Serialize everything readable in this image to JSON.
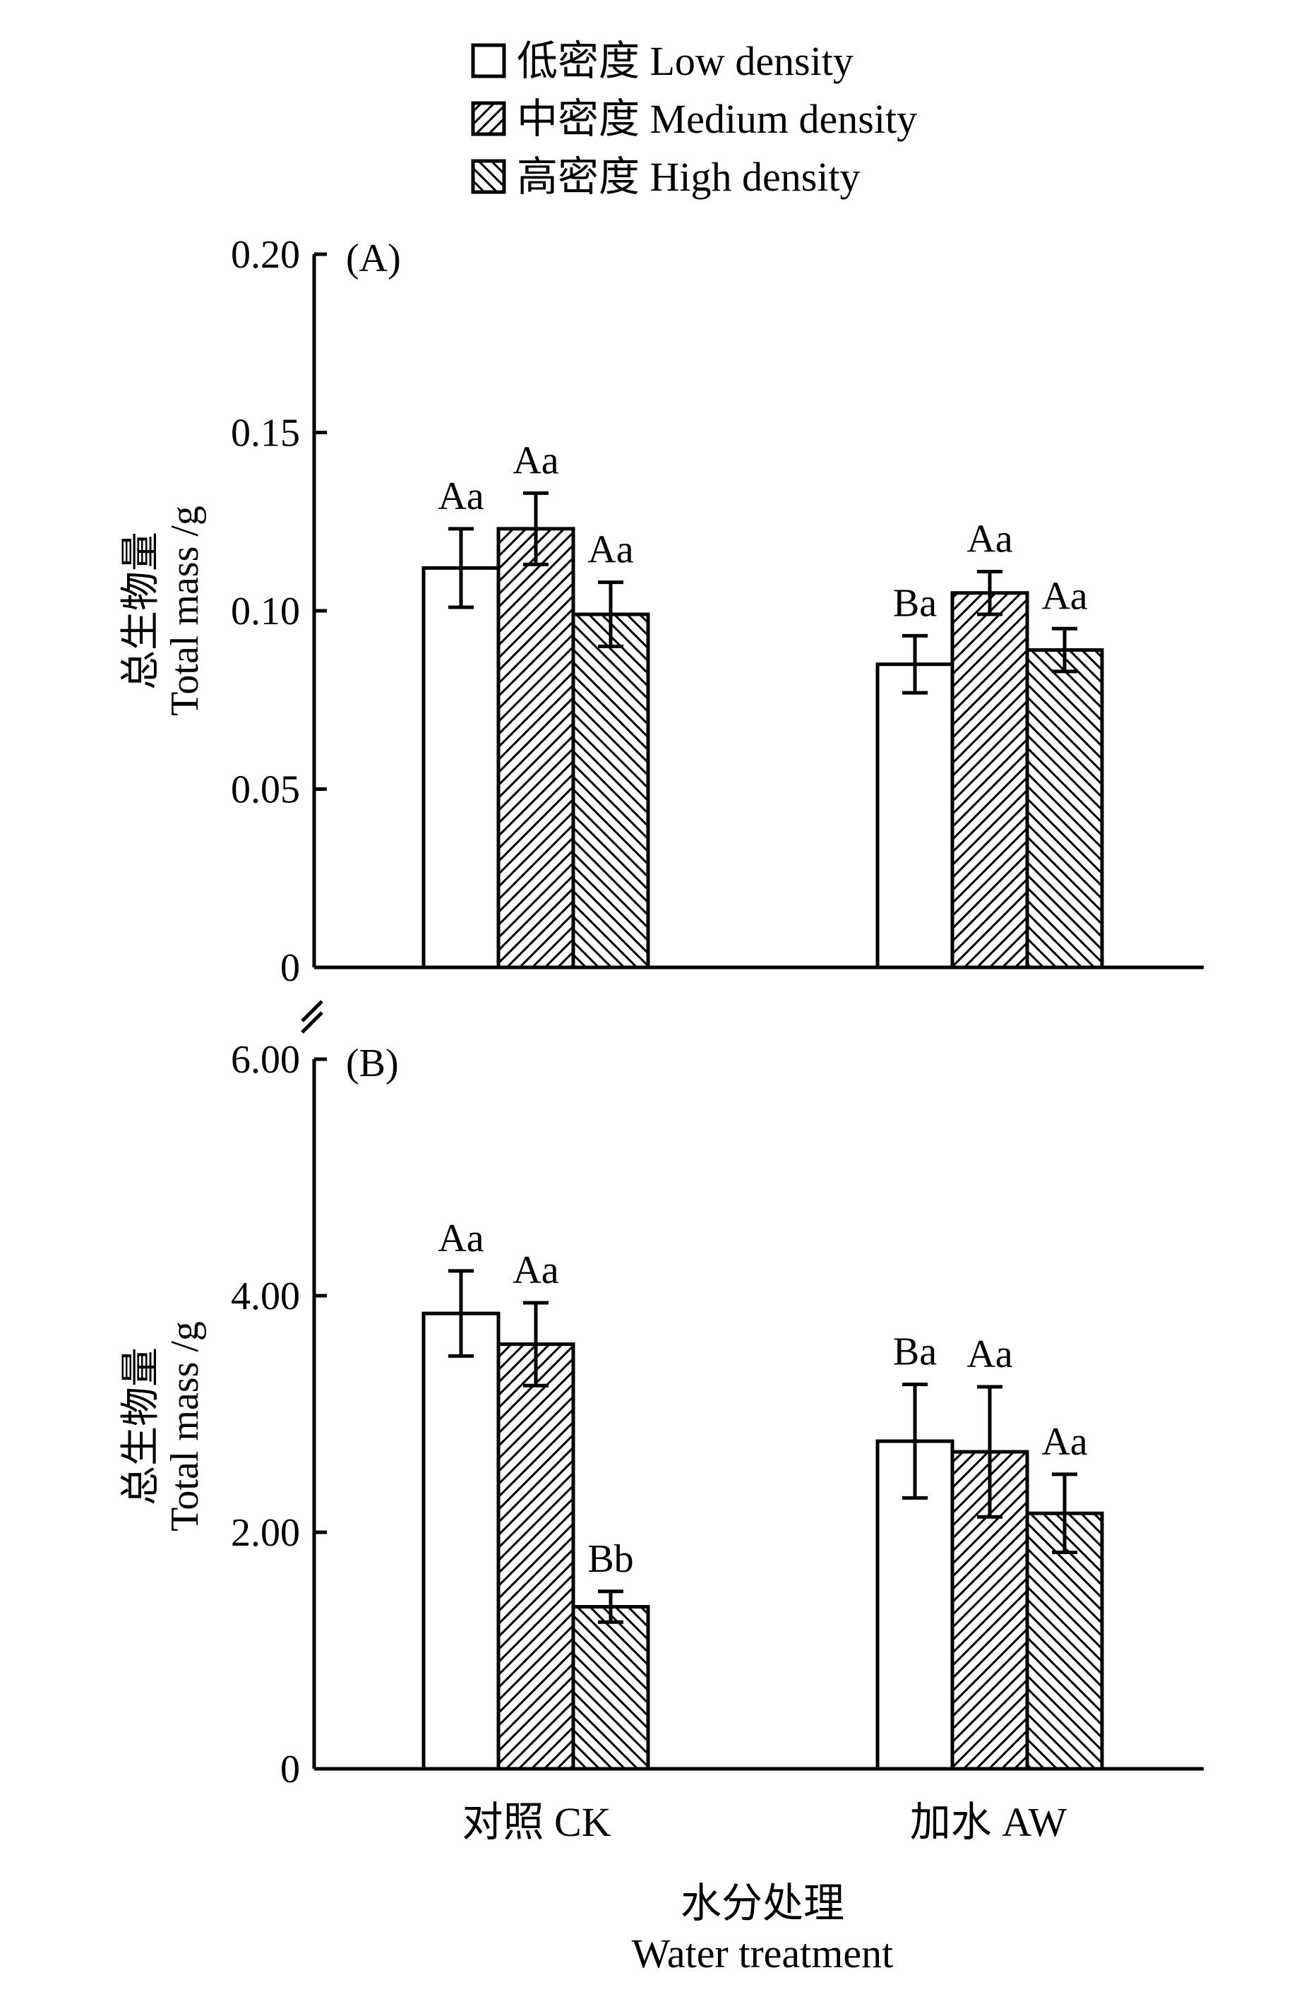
{
  "legend": [
    {
      "key": "low",
      "label": "低密度 Low density",
      "pattern": "none"
    },
    {
      "key": "medium",
      "label": "中密度 Medium density",
      "pattern": "hatch-forward"
    },
    {
      "key": "high",
      "label": "高密度 High density",
      "pattern": "hatch-back"
    }
  ],
  "xlabel_cn": "水分处理",
  "xlabel_en": "Water treatment",
  "colors": {
    "bar_fill": "#ffffff",
    "stroke": "#000000"
  },
  "chart_data": [
    {
      "type": "bar",
      "panel": "(A)",
      "ylabel_cn": "总生物量",
      "ylabel_en": "Total mass /g",
      "ylim": [
        0,
        0.2
      ],
      "yticks": [
        0,
        0.05,
        0.1,
        0.15,
        0.2
      ],
      "ytick_labels": [
        "0",
        "0.05",
        "0.10",
        "0.15",
        "0.20"
      ],
      "categories": [
        "对照 CK",
        "加水 AW"
      ],
      "series": [
        {
          "name": "低密度 Low density",
          "values": [
            0.112,
            0.085
          ],
          "errors": [
            0.011,
            0.008
          ],
          "labels": [
            "Aa",
            "Ba"
          ]
        },
        {
          "name": "中密度 Medium density",
          "values": [
            0.123,
            0.105
          ],
          "errors": [
            0.01,
            0.006
          ],
          "labels": [
            "Aa",
            "Aa"
          ]
        },
        {
          "name": "高密度 High density",
          "values": [
            0.099,
            0.089
          ],
          "errors": [
            0.009,
            0.006
          ],
          "labels": [
            "Aa",
            "Aa"
          ]
        }
      ]
    },
    {
      "type": "bar",
      "panel": "(B)",
      "ylabel_cn": "总生物量",
      "ylabel_en": "Total mass /g",
      "ylim": [
        0,
        6
      ],
      "yticks": [
        0,
        2,
        4,
        6
      ],
      "ytick_labels": [
        "0",
        "2.00",
        "4.00",
        "6.00"
      ],
      "categories": [
        "对照 CK",
        "加水 AW"
      ],
      "series": [
        {
          "name": "低密度 Low density",
          "values": [
            3.85,
            2.77
          ],
          "errors": [
            0.36,
            0.48
          ],
          "labels": [
            "Aa",
            "Ba"
          ]
        },
        {
          "name": "中密度 Medium density",
          "values": [
            3.59,
            2.68
          ],
          "errors": [
            0.35,
            0.55
          ],
          "labels": [
            "Aa",
            "Aa"
          ]
        },
        {
          "name": "高密度 High density",
          "values": [
            1.37,
            2.16
          ],
          "errors": [
            0.13,
            0.33
          ],
          "labels": [
            "Bb",
            "Aa"
          ]
        }
      ]
    }
  ]
}
